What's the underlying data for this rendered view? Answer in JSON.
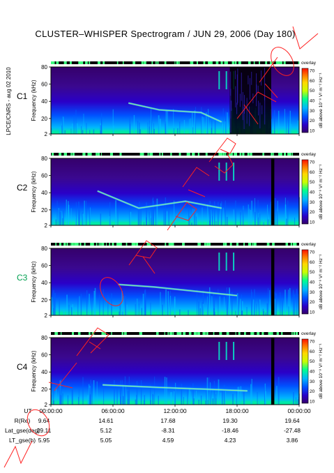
{
  "title": "CLUSTER–WHISPER Spectrogram / JUN 29, 2006 (Day 180)",
  "side_label": "LPCE/CNRS - aug 02 2010",
  "watermark": "NOT FOR PUBLICATION",
  "chart_data": {
    "type": "heatmap",
    "ylabel": "Frequency (kHz)",
    "yticks": [
      2,
      20,
      40,
      60,
      80
    ],
    "ylim": [
      2,
      80
    ],
    "colorbar": {
      "label": "dB above 10⁻⁸ V² m⁻² Hz⁻¹",
      "ticks": [
        10,
        20,
        30,
        40,
        50,
        60,
        70
      ],
      "range": [
        10,
        70
      ],
      "colors": [
        "#35006a",
        "#2a00c8",
        "#0050ff",
        "#00b4ff",
        "#00ff90",
        "#c8ff00",
        "#ffd800",
        "#ff7000",
        "#ff1000"
      ]
    },
    "strip_label": "overlay",
    "panels": [
      {
        "name": "C1",
        "name_color": "#000000",
        "bursts": [
          {
            "start": 17.3,
            "end": 21.3,
            "black": true
          }
        ],
        "gaps": [],
        "features": [
          {
            "t": 7.5,
            "f": 38
          },
          {
            "t": 10.5,
            "f": 30
          },
          {
            "t": 14.5,
            "f": 27
          },
          {
            "t": 16.5,
            "f": 16
          }
        ]
      },
      {
        "name": "C2",
        "name_color": "#000000",
        "bursts": [],
        "gaps": [
          {
            "start": 21.3,
            "end": 21.6
          }
        ],
        "features": [
          {
            "t": 4.5,
            "f": 42
          },
          {
            "t": 8.5,
            "f": 22
          },
          {
            "t": 13.0,
            "f": 30
          },
          {
            "t": 16.5,
            "f": 22
          }
        ]
      },
      {
        "name": "C3",
        "name_color": "#00a050",
        "bursts": [],
        "gaps": [
          {
            "start": 21.3,
            "end": 21.6
          }
        ],
        "features": [
          {
            "t": 6.5,
            "f": 38
          },
          {
            "t": 10.0,
            "f": 35
          },
          {
            "t": 14.0,
            "f": 30
          },
          {
            "t": 18.0,
            "f": 25
          }
        ]
      },
      {
        "name": "C4",
        "name_color": "#000000",
        "bursts": [],
        "gaps": [
          {
            "start": 21.3,
            "end": 21.6
          }
        ],
        "features": [
          {
            "t": 5.0,
            "f": 25
          },
          {
            "t": 10.5,
            "f": 22
          },
          {
            "t": 15.0,
            "f": 20
          },
          {
            "t": 19.0,
            "f": 18
          }
        ]
      }
    ],
    "xlim": [
      0,
      24
    ],
    "xticks": [
      "00:00:00",
      "06:00:00",
      "12:00:00",
      "18:00:00",
      "00:00:00"
    ]
  },
  "ephemeris": {
    "rows": [
      {
        "label": "UT",
        "values": [
          "00:00:00",
          "06:00:00",
          "12:00:00",
          "18:00:00",
          "00:00:00"
        ]
      },
      {
        "label": "R(Re)",
        "values": [
          "9.64",
          "14.61",
          "17.68",
          "19.30",
          "19.64"
        ]
      },
      {
        "label": "Lat_gse(deg)",
        "values": [
          "29.11",
          "5.12",
          "-8.31",
          "-18.46",
          "-27.48"
        ]
      },
      {
        "label": "LT_gse(h)",
        "values": [
          "5.95",
          "5.05",
          "4.59",
          "4.23",
          "3.86"
        ]
      }
    ]
  }
}
